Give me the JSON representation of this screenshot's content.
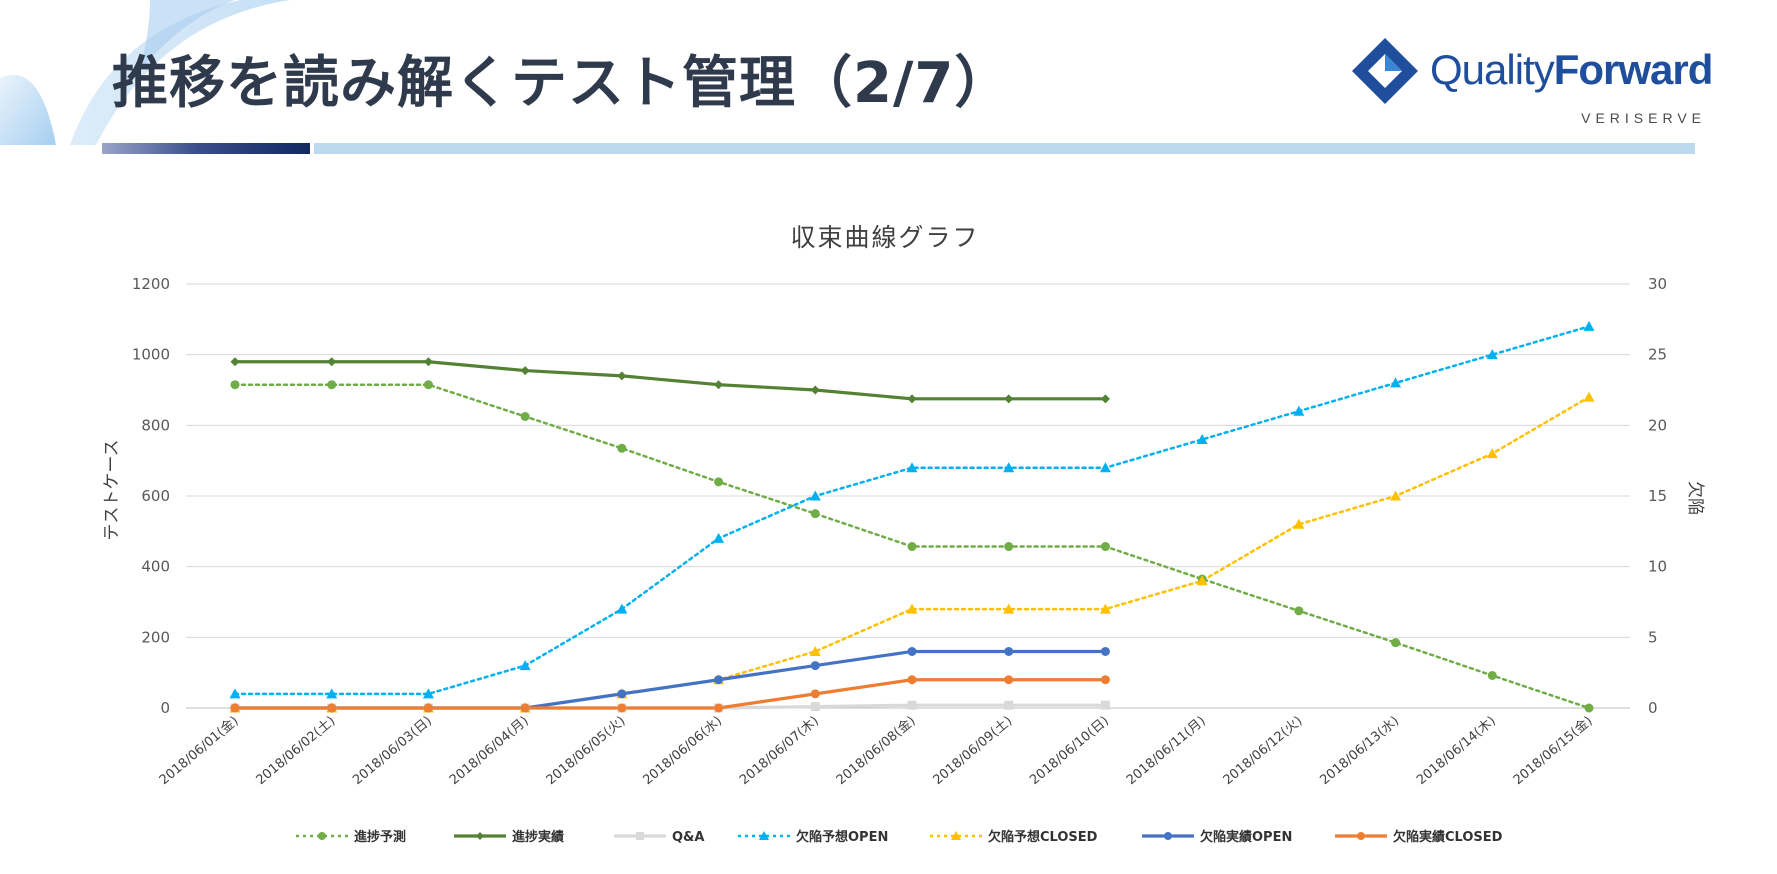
{
  "slide": {
    "title": "推移を読み解くテスト管理（2/7）",
    "logo": {
      "word_light": "Quality",
      "word_bold": "Forward",
      "sub": "VERISERVE"
    }
  },
  "colors": {
    "title": "#2f3b4c",
    "logo_blue": "#1f4f9c",
    "accent_bar": "#12285f",
    "light_bar": "#bcd9ee"
  },
  "chart_data": {
    "type": "line",
    "title": "収束曲線グラフ",
    "ylabel": "テストケース",
    "y2label": "欠陥",
    "ylim": [
      0,
      1200
    ],
    "yticks": [
      0,
      200,
      400,
      600,
      800,
      1000,
      1200
    ],
    "y2lim": [
      0,
      30
    ],
    "y2ticks": [
      0,
      5,
      10,
      15,
      20,
      25,
      30
    ],
    "grid": true,
    "legend_position": "bottom",
    "categories": [
      "2018/06/01(金)",
      "2018/06/02(土)",
      "2018/06/03(日)",
      "2018/06/04(月)",
      "2018/06/05(火)",
      "2018/06/06(水)",
      "2018/06/07(木)",
      "2018/06/08(金)",
      "2018/06/09(土)",
      "2018/06/10(日)",
      "2018/06/11(月)",
      "2018/06/12(火)",
      "2018/06/13(水)",
      "2018/06/14(木)",
      "2018/06/15(金)"
    ],
    "series": [
      {
        "name": "進捗予測",
        "axis": "left",
        "color": "#70ad47",
        "dash": true,
        "marker": "circle",
        "values": [
          915,
          915,
          915,
          825,
          735,
          640,
          550,
          457,
          457,
          457,
          365,
          275,
          185,
          92,
          0
        ]
      },
      {
        "name": "進捗実績",
        "axis": "left",
        "color": "#548235",
        "dash": false,
        "marker": "diamond",
        "values": [
          980,
          980,
          980,
          955,
          940,
          915,
          900,
          875,
          875,
          875,
          null,
          null,
          null,
          null,
          null
        ]
      },
      {
        "name": "Q&A",
        "axis": "right",
        "color": "#d9d9d9",
        "dash": false,
        "marker": "square",
        "values": [
          0,
          0,
          0,
          0,
          0,
          0,
          0.1,
          0.2,
          0.2,
          0.2,
          null,
          null,
          null,
          null,
          null
        ]
      },
      {
        "name": "欠陥予想OPEN",
        "axis": "right",
        "color": "#00b0f0",
        "dash": true,
        "marker": "triangle",
        "values": [
          1,
          1,
          1,
          3,
          7,
          12,
          15,
          17,
          17,
          17,
          19,
          21,
          23,
          25,
          27
        ]
      },
      {
        "name": "欠陥予想CLOSED",
        "axis": "right",
        "color": "#ffc000",
        "dash": true,
        "marker": "triangle",
        "values": [
          0,
          0,
          0,
          0,
          1,
          2,
          4,
          7,
          7,
          7,
          9,
          13,
          15,
          18,
          22
        ]
      },
      {
        "name": "欠陥実績OPEN",
        "axis": "right",
        "color": "#4472c4",
        "dash": false,
        "marker": "circle",
        "values": [
          0,
          0,
          0,
          0,
          1,
          2,
          3,
          4,
          4,
          4,
          null,
          null,
          null,
          null,
          null
        ]
      },
      {
        "name": "欠陥実績CLOSED",
        "axis": "right",
        "color": "#ed7d31",
        "dash": false,
        "marker": "circle",
        "values": [
          0,
          0,
          0,
          0,
          0,
          0,
          1,
          2,
          2,
          2,
          null,
          null,
          null,
          null,
          null
        ]
      }
    ]
  }
}
